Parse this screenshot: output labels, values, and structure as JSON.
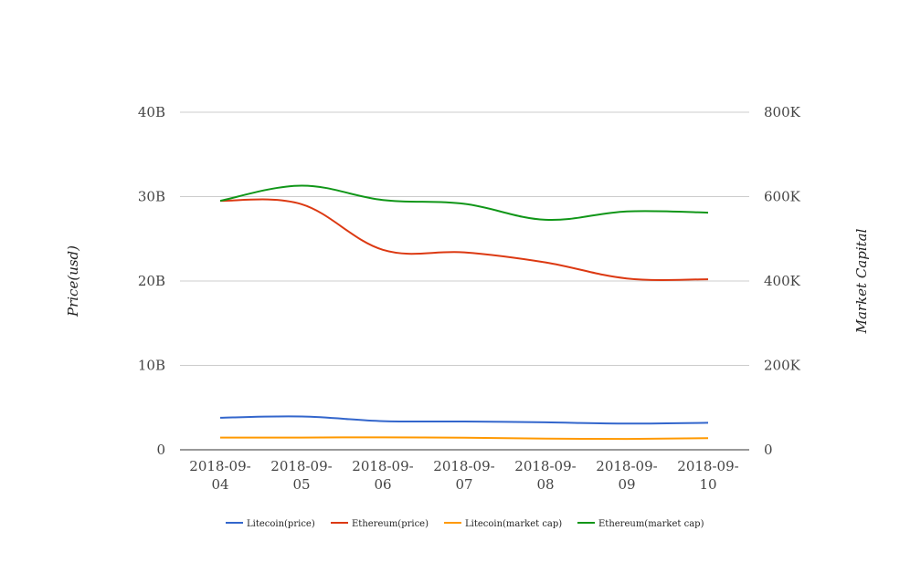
{
  "chart_data": {
    "type": "line",
    "title": "",
    "categories": [
      "2018-09-04",
      "2018-09-05",
      "2018-09-06",
      "2018-09-07",
      "2018-09-08",
      "2018-09-09",
      "2018-09-10"
    ],
    "category_lines": [
      [
        "2018-09-",
        "04"
      ],
      [
        "2018-09-",
        "05"
      ],
      [
        "2018-09-",
        "06"
      ],
      [
        "2018-09-",
        "07"
      ],
      [
        "2018-09-",
        "08"
      ],
      [
        "2018-09-",
        "09"
      ],
      [
        "2018-09-",
        "10"
      ]
    ],
    "ylabel_left": "Price(usd)",
    "ylabel_right": "Market Capital",
    "y_left_ticks": [
      "0",
      "10B",
      "20B",
      "30B",
      "40B"
    ],
    "y_right_ticks": [
      "0",
      "200K",
      "400K",
      "600K",
      "800K"
    ],
    "ylim_left": [
      0,
      40000000000
    ],
    "ylim_right": [
      0,
      800000
    ],
    "grid": true,
    "legend_position": "bottom",
    "series": [
      {
        "name": "Litecoin(price)",
        "axis": "left",
        "color": "#3366cc",
        "values": [
          3800000000,
          3950000000,
          3400000000,
          3350000000,
          3250000000,
          3100000000,
          3200000000
        ]
      },
      {
        "name": "Ethereum(price)",
        "axis": "left",
        "color": "#dc3912",
        "values": [
          29500000000,
          29100000000,
          23700000000,
          23400000000,
          22200000000,
          20300000000,
          20200000000
        ]
      },
      {
        "name": "Litecoin(market cap)",
        "axis": "right",
        "color": "#ff9900",
        "values": [
          29000,
          29000,
          29500,
          28800,
          26500,
          25800,
          27500
        ]
      },
      {
        "name": "Ethereum(market cap)",
        "axis": "right",
        "color": "#109618",
        "values": [
          590000,
          626000,
          592000,
          583000,
          545000,
          565000,
          562000
        ]
      }
    ]
  }
}
